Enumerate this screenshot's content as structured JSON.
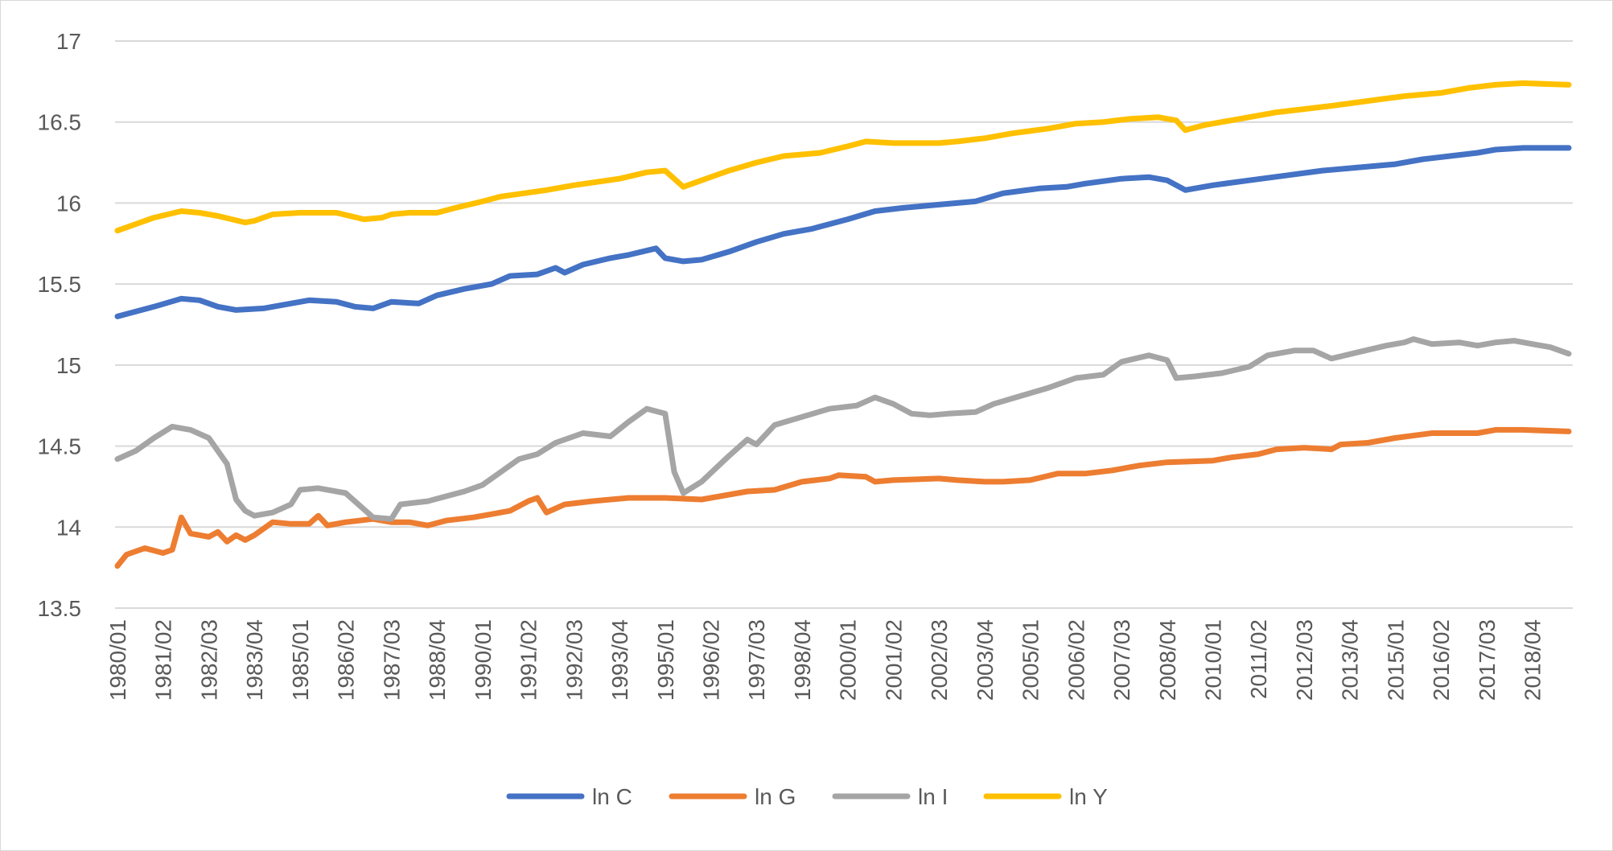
{
  "chart_data": {
    "type": "line",
    "title": "",
    "xlabel": "",
    "ylabel": "",
    "ylim": [
      13.5,
      17
    ],
    "y_ticks": [
      "13.5",
      "14",
      "14.5",
      "15",
      "15.5",
      "16",
      "16.5",
      "17"
    ],
    "x_tick_labels": [
      "1980/01",
      "1981/02",
      "1982/03",
      "1983/04",
      "1985/01",
      "1986/02",
      "1987/03",
      "1988/04",
      "1990/01",
      "1991/02",
      "1992/03",
      "1993/04",
      "1995/01",
      "1996/02",
      "1997/03",
      "1998/04",
      "2000/01",
      "2001/02",
      "2002/03",
      "2003/04",
      "2005/01",
      "2006/02",
      "2007/03",
      "2008/04",
      "2010/01",
      "2011/02",
      "2012/03",
      "2013/04",
      "2015/01",
      "2016/02",
      "2017/03",
      "2018/04"
    ],
    "x_start": "1980/01",
    "x_end": "2019/04",
    "grid": true,
    "legend_position": "bottom",
    "series": [
      {
        "name": "ln C",
        "color": "#4472C4",
        "points": [
          [
            "1980/01",
            15.3
          ],
          [
            "1981/01",
            15.36
          ],
          [
            "1981/04",
            15.41
          ],
          [
            "1982/02",
            15.4
          ],
          [
            "1982/04",
            15.36
          ],
          [
            "1983/02",
            15.34
          ],
          [
            "1984/01",
            15.35
          ],
          [
            "1984/04",
            15.38
          ],
          [
            "1985/02",
            15.4
          ],
          [
            "1986/01",
            15.39
          ],
          [
            "1986/03",
            15.36
          ],
          [
            "1987/01",
            15.35
          ],
          [
            "1987/03",
            15.39
          ],
          [
            "1988/02",
            15.38
          ],
          [
            "1988/04",
            15.43
          ],
          [
            "1989/03",
            15.47
          ],
          [
            "1990/02",
            15.5
          ],
          [
            "1990/04",
            15.55
          ],
          [
            "1991/03",
            15.56
          ],
          [
            "1992/01",
            15.6
          ],
          [
            "1992/02",
            15.57
          ],
          [
            "1992/04",
            15.62
          ],
          [
            "1993/03",
            15.66
          ],
          [
            "1994/01",
            15.68
          ],
          [
            "1994/04",
            15.72
          ],
          [
            "1995/01",
            15.66
          ],
          [
            "1995/03",
            15.64
          ],
          [
            "1996/01",
            15.65
          ],
          [
            "1996/04",
            15.7
          ],
          [
            "1997/03",
            15.76
          ],
          [
            "1998/02",
            15.81
          ],
          [
            "1999/01",
            15.84
          ],
          [
            "2000/01",
            15.9
          ],
          [
            "2000/04",
            15.95
          ],
          [
            "2001/03",
            15.97
          ],
          [
            "2002/03",
            15.99
          ],
          [
            "2003/03",
            16.01
          ],
          [
            "2004/02",
            16.06
          ],
          [
            "2005/02",
            16.09
          ],
          [
            "2006/01",
            16.1
          ],
          [
            "2006/03",
            16.12
          ],
          [
            "2007/03",
            16.15
          ],
          [
            "2008/02",
            16.16
          ],
          [
            "2008/04",
            16.14
          ],
          [
            "2009/02",
            16.08
          ],
          [
            "2010/01",
            16.11
          ],
          [
            "2011/01",
            16.14
          ],
          [
            "2012/01",
            16.17
          ],
          [
            "2013/01",
            16.2
          ],
          [
            "2014/01",
            16.22
          ],
          [
            "2015/01",
            16.24
          ],
          [
            "2015/04",
            16.27
          ],
          [
            "2016/03",
            16.29
          ],
          [
            "2017/02",
            16.31
          ],
          [
            "2017/04",
            16.33
          ],
          [
            "2018/03",
            16.34
          ],
          [
            "2019/04",
            16.34
          ]
        ]
      },
      {
        "name": "ln G",
        "color": "#ED7D31",
        "points": [
          [
            "1980/01",
            13.76
          ],
          [
            "1980/02",
            13.83
          ],
          [
            "1980/04",
            13.87
          ],
          [
            "1981/02",
            13.84
          ],
          [
            "1981/03",
            13.86
          ],
          [
            "1981/04",
            14.06
          ],
          [
            "1982/01",
            13.96
          ],
          [
            "1982/03",
            13.94
          ],
          [
            "1982/04",
            13.97
          ],
          [
            "1983/01",
            13.91
          ],
          [
            "1983/02",
            13.95
          ],
          [
            "1983/03",
            13.92
          ],
          [
            "1983/04",
            13.95
          ],
          [
            "1984/02",
            14.03
          ],
          [
            "1984/04",
            14.02
          ],
          [
            "1985/02",
            14.02
          ],
          [
            "1985/03",
            14.07
          ],
          [
            "1985/04",
            14.01
          ],
          [
            "1986/02",
            14.03
          ],
          [
            "1987/01",
            14.05
          ],
          [
            "1987/03",
            14.03
          ],
          [
            "1988/01",
            14.03
          ],
          [
            "1988/03",
            14.01
          ],
          [
            "1989/01",
            14.04
          ],
          [
            "1989/04",
            14.06
          ],
          [
            "1990/02",
            14.08
          ],
          [
            "1990/04",
            14.1
          ],
          [
            "1991/02",
            14.16
          ],
          [
            "1991/03",
            14.18
          ],
          [
            "1991/04",
            14.09
          ],
          [
            "1992/02",
            14.14
          ],
          [
            "1993/01",
            14.16
          ],
          [
            "1994/01",
            14.18
          ],
          [
            "1995/01",
            14.18
          ],
          [
            "1996/01",
            14.17
          ],
          [
            "1996/03",
            14.19
          ],
          [
            "1997/02",
            14.22
          ],
          [
            "1998/01",
            14.23
          ],
          [
            "1998/04",
            14.28
          ],
          [
            "1999/03",
            14.3
          ],
          [
            "1999/04",
            14.32
          ],
          [
            "2000/03",
            14.31
          ],
          [
            "2000/04",
            14.28
          ],
          [
            "2001/02",
            14.29
          ],
          [
            "2002/03",
            14.3
          ],
          [
            "2003/01",
            14.29
          ],
          [
            "2003/04",
            14.28
          ],
          [
            "2004/02",
            14.28
          ],
          [
            "2005/01",
            14.29
          ],
          [
            "2005/04",
            14.33
          ],
          [
            "2006/03",
            14.33
          ],
          [
            "2007/02",
            14.35
          ],
          [
            "2008/01",
            14.38
          ],
          [
            "2008/04",
            14.4
          ],
          [
            "2010/01",
            14.41
          ],
          [
            "2010/03",
            14.43
          ],
          [
            "2011/02",
            14.45
          ],
          [
            "2011/04",
            14.48
          ],
          [
            "2012/03",
            14.49
          ],
          [
            "2013/02",
            14.48
          ],
          [
            "2013/03",
            14.51
          ],
          [
            "2014/02",
            14.52
          ],
          [
            "2015/01",
            14.55
          ],
          [
            "2016/01",
            14.58
          ],
          [
            "2016/04",
            14.58
          ],
          [
            "2017/02",
            14.58
          ],
          [
            "2017/04",
            14.6
          ],
          [
            "2018/03",
            14.6
          ],
          [
            "2019/04",
            14.59
          ]
        ]
      },
      {
        "name": "ln I",
        "color": "#A5A5A5",
        "points": [
          [
            "1980/01",
            14.42
          ],
          [
            "1980/03",
            14.47
          ],
          [
            "1981/01",
            14.55
          ],
          [
            "1981/03",
            14.62
          ],
          [
            "1982/01",
            14.6
          ],
          [
            "1982/03",
            14.55
          ],
          [
            "1983/01",
            14.39
          ],
          [
            "1983/02",
            14.17
          ],
          [
            "1983/03",
            14.1
          ],
          [
            "1983/04",
            14.07
          ],
          [
            "1984/02",
            14.09
          ],
          [
            "1984/04",
            14.14
          ],
          [
            "1985/01",
            14.23
          ],
          [
            "1985/03",
            14.24
          ],
          [
            "1986/02",
            14.21
          ],
          [
            "1986/04",
            14.11
          ],
          [
            "1987/01",
            14.06
          ],
          [
            "1987/03",
            14.05
          ],
          [
            "1987/04",
            14.14
          ],
          [
            "1988/03",
            14.16
          ],
          [
            "1989/01",
            14.19
          ],
          [
            "1989/03",
            14.22
          ],
          [
            "1990/01",
            14.26
          ],
          [
            "1990/03",
            14.34
          ],
          [
            "1991/01",
            14.42
          ],
          [
            "1991/03",
            14.45
          ],
          [
            "1992/01",
            14.52
          ],
          [
            "1992/04",
            14.58
          ],
          [
            "1993/03",
            14.56
          ],
          [
            "1994/01",
            14.65
          ],
          [
            "1994/03",
            14.73
          ],
          [
            "1995/01",
            14.7
          ],
          [
            "1995/02",
            14.34
          ],
          [
            "1995/03",
            14.21
          ],
          [
            "1996/01",
            14.28
          ],
          [
            "1996/04",
            14.44
          ],
          [
            "1997/02",
            14.54
          ],
          [
            "1997/03",
            14.51
          ],
          [
            "1998/01",
            14.63
          ],
          [
            "1998/04",
            14.68
          ],
          [
            "1999/03",
            14.73
          ],
          [
            "2000/02",
            14.75
          ],
          [
            "2000/04",
            14.8
          ],
          [
            "2001/02",
            14.76
          ],
          [
            "2001/04",
            14.7
          ],
          [
            "2002/02",
            14.69
          ],
          [
            "2002/04",
            14.7
          ],
          [
            "2003/03",
            14.71
          ],
          [
            "2004/01",
            14.76
          ],
          [
            "2004/04",
            14.81
          ],
          [
            "2005/03",
            14.86
          ],
          [
            "2006/02",
            14.92
          ],
          [
            "2007/01",
            14.94
          ],
          [
            "2007/03",
            15.02
          ],
          [
            "2008/02",
            15.06
          ],
          [
            "2008/04",
            15.03
          ],
          [
            "2009/01",
            14.92
          ],
          [
            "2009/03",
            14.93
          ],
          [
            "2010/02",
            14.95
          ],
          [
            "2011/01",
            14.99
          ],
          [
            "2011/03",
            15.06
          ],
          [
            "2012/02",
            15.09
          ],
          [
            "2012/04",
            15.09
          ],
          [
            "2013/02",
            15.04
          ],
          [
            "2014/01",
            15.08
          ],
          [
            "2014/04",
            15.12
          ],
          [
            "2015/02",
            15.14
          ],
          [
            "2015/03",
            15.16
          ],
          [
            "2016/01",
            15.13
          ],
          [
            "2016/04",
            15.14
          ],
          [
            "2017/02",
            15.12
          ],
          [
            "2017/04",
            15.14
          ],
          [
            "2018/02",
            15.15
          ],
          [
            "2018/04",
            15.13
          ],
          [
            "2019/02",
            15.11
          ],
          [
            "2019/04",
            15.07
          ]
        ]
      },
      {
        "name": "ln Y",
        "color": "#FFC000",
        "points": [
          [
            "1980/01",
            15.83
          ],
          [
            "1981/01",
            15.91
          ],
          [
            "1981/04",
            15.95
          ],
          [
            "1982/02",
            15.94
          ],
          [
            "1982/04",
            15.92
          ],
          [
            "1983/03",
            15.88
          ],
          [
            "1983/04",
            15.89
          ],
          [
            "1984/02",
            15.93
          ],
          [
            "1985/01",
            15.94
          ],
          [
            "1986/01",
            15.94
          ],
          [
            "1986/04",
            15.9
          ],
          [
            "1987/02",
            15.91
          ],
          [
            "1987/03",
            15.93
          ],
          [
            "1988/01",
            15.94
          ],
          [
            "1988/04",
            15.94
          ],
          [
            "1989/02",
            15.97
          ],
          [
            "1990/01",
            16.01
          ],
          [
            "1990/03",
            16.04
          ],
          [
            "1991/04",
            16.08
          ],
          [
            "1992/03",
            16.11
          ],
          [
            "1993/04",
            16.15
          ],
          [
            "1994/03",
            16.19
          ],
          [
            "1995/01",
            16.2
          ],
          [
            "1995/03",
            16.1
          ],
          [
            "1996/01",
            16.14
          ],
          [
            "1996/04",
            16.2
          ],
          [
            "1997/03",
            16.25
          ],
          [
            "1998/02",
            16.29
          ],
          [
            "1999/02",
            16.31
          ],
          [
            "2000/01",
            16.35
          ],
          [
            "2000/03",
            16.38
          ],
          [
            "2001/02",
            16.37
          ],
          [
            "2002/03",
            16.37
          ],
          [
            "2003/01",
            16.38
          ],
          [
            "2003/04",
            16.4
          ],
          [
            "2004/03",
            16.43
          ],
          [
            "2005/03",
            16.46
          ],
          [
            "2006/02",
            16.49
          ],
          [
            "2007/01",
            16.5
          ],
          [
            "2007/04",
            16.52
          ],
          [
            "2008/03",
            16.53
          ],
          [
            "2009/01",
            16.51
          ],
          [
            "2009/02",
            16.45
          ],
          [
            "2009/04",
            16.48
          ],
          [
            "2010/04",
            16.52
          ],
          [
            "2011/04",
            16.56
          ],
          [
            "2012/03",
            16.58
          ],
          [
            "2013/02",
            16.6
          ],
          [
            "2014/02",
            16.63
          ],
          [
            "2015/02",
            16.66
          ],
          [
            "2016/02",
            16.68
          ],
          [
            "2017/01",
            16.71
          ],
          [
            "2017/04",
            16.73
          ],
          [
            "2018/03",
            16.74
          ],
          [
            "2019/04",
            16.73
          ]
        ]
      }
    ]
  }
}
